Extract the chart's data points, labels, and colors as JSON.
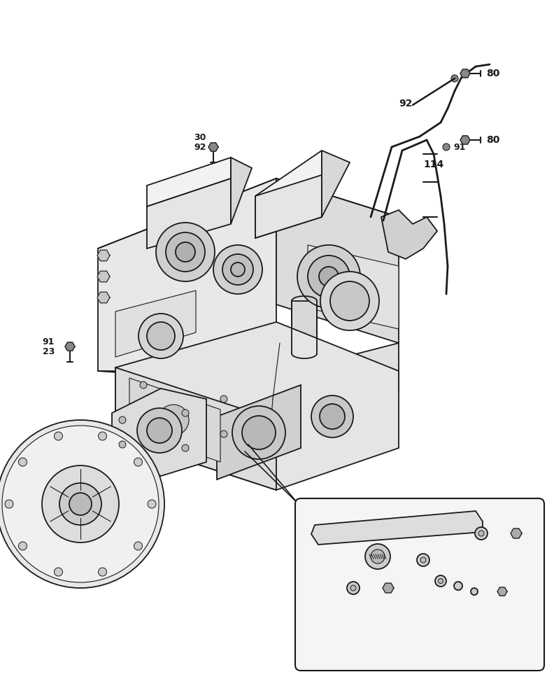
{
  "bg_color": "#ffffff",
  "line_color": "#1a1a1a",
  "fig_width": 7.92,
  "fig_height": 10.0,
  "dpi": 100,
  "xlim": [
    0,
    792
  ],
  "ylim": [
    0,
    1000
  ]
}
